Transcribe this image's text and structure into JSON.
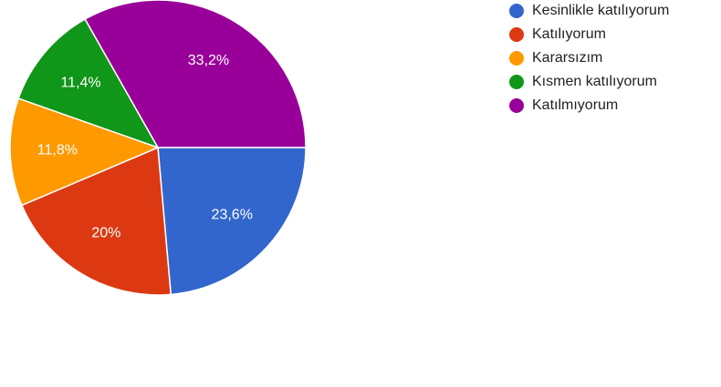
{
  "chart_data": {
    "type": "pie",
    "categories": [
      "Kesinlikle katılıyorum",
      "Katılıyorum",
      "Kararsızım",
      "Kısmen katılıyorum",
      "Katılmıyorum"
    ],
    "values": [
      23.6,
      20,
      11.8,
      11.4,
      33.2
    ],
    "value_labels": [
      "23,6%",
      "20%",
      "11,8%",
      "11,4%",
      "33,2%"
    ],
    "colors": [
      "#3366cc",
      "#dc3912",
      "#ff9900",
      "#109618",
      "#990099"
    ],
    "legend": "right"
  }
}
